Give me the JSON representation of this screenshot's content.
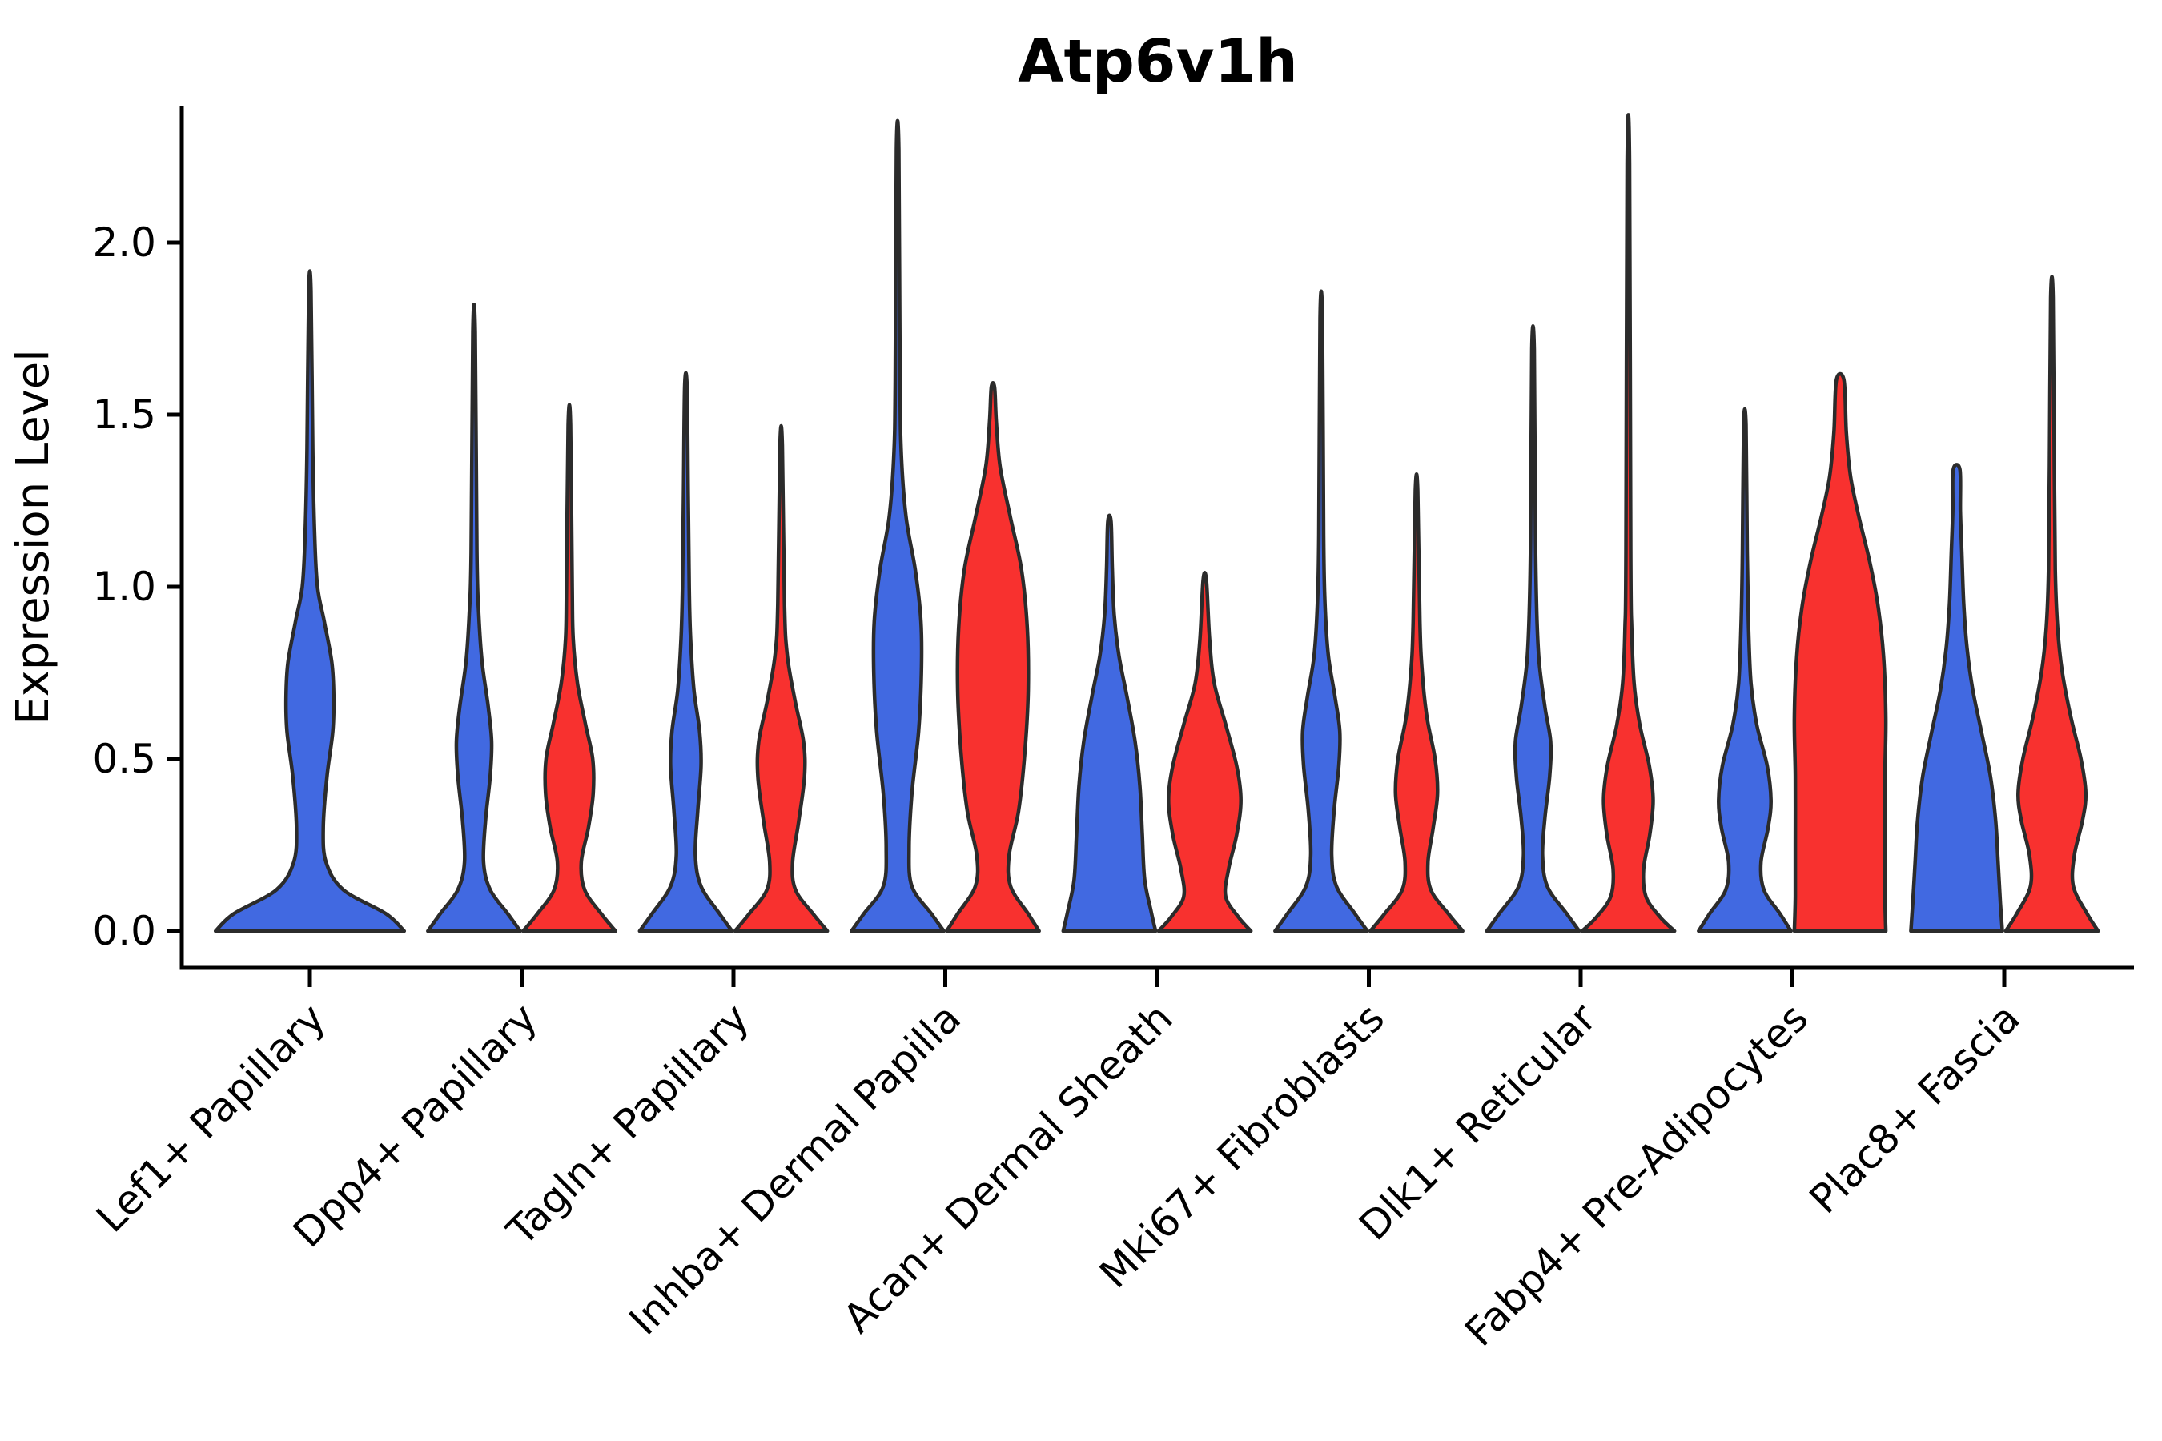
{
  "title": "Atp6v1h",
  "y_axis": {
    "label": "Expression Level",
    "tick_labels": [
      "0.0",
      "0.5",
      "1.0",
      "1.5",
      "2.0"
    ]
  },
  "x_axis": {
    "categories": [
      "Lef1+ Papillary",
      "Dpp4+ Papillary",
      "Tagln+ Papillary",
      "Inhba+ Dermal Papilla",
      "Acan+ Dermal Sheath",
      "Mki67+ Fibroblasts",
      "Dlk1+ Reticular",
      "Fabp4+ Pre-Adipocytes",
      "Plac8+ Fascia"
    ]
  },
  "colors": {
    "blue": "#4169E1",
    "red": "#F8312F",
    "outline": "#2B2B2B",
    "axis": "#000000",
    "background": "#FFFFFF"
  },
  "chart_data": {
    "type": "violin",
    "split_violin": true,
    "title": "Atp6v1h",
    "ylabel": "Expression Level",
    "ylim": [
      -0.11,
      2.4
    ],
    "yticks": [
      0.0,
      0.5,
      1.0,
      1.5,
      2.0
    ],
    "grid": false,
    "legend": "none",
    "categories": [
      "Lef1+ Papillary",
      "Dpp4+ Papillary",
      "Tagln+ Papillary",
      "Inhba+ Dermal Papilla",
      "Acan+ Dermal Sheath",
      "Mki67+ Fibroblasts",
      "Dlk1+ Reticular",
      "Fabp4+ Pre-Adipocytes",
      "Plac8+ Fascia"
    ],
    "violins": [
      {
        "category_index": 0,
        "group": "blue",
        "color": "#4169E1",
        "offset": 0.0,
        "width": 0.9,
        "max_expression": 1.86,
        "profile": [
          [
            0,
            0.99
          ],
          [
            0.05,
            0.8
          ],
          [
            0.12,
            0.35
          ],
          [
            0.2,
            0.17
          ],
          [
            0.3,
            0.14
          ],
          [
            0.45,
            0.18
          ],
          [
            0.58,
            0.24
          ],
          [
            0.68,
            0.25
          ],
          [
            0.78,
            0.23
          ],
          [
            0.9,
            0.15
          ],
          [
            1.0,
            0.08
          ],
          [
            1.15,
            0.05
          ],
          [
            1.4,
            0.03
          ],
          [
            1.86,
            0.012
          ]
        ]
      },
      {
        "category_index": 1,
        "group": "blue",
        "color": "#4169E1",
        "offset": -0.225,
        "width": 0.45,
        "max_expression": 1.74,
        "profile": [
          [
            0,
            0.97
          ],
          [
            0.05,
            0.71
          ],
          [
            0.12,
            0.34
          ],
          [
            0.2,
            0.2
          ],
          [
            0.32,
            0.24
          ],
          [
            0.45,
            0.34
          ],
          [
            0.55,
            0.37
          ],
          [
            0.65,
            0.3
          ],
          [
            0.78,
            0.17
          ],
          [
            0.92,
            0.1
          ],
          [
            1.1,
            0.06
          ],
          [
            1.74,
            0.025
          ]
        ]
      },
      {
        "category_index": 1,
        "group": "red",
        "color": "#F8312F",
        "offset": 0.225,
        "width": 0.45,
        "max_expression": 1.47,
        "profile": [
          [
            0,
            0.97
          ],
          [
            0.05,
            0.67
          ],
          [
            0.12,
            0.32
          ],
          [
            0.2,
            0.25
          ],
          [
            0.3,
            0.4
          ],
          [
            0.4,
            0.5
          ],
          [
            0.5,
            0.49
          ],
          [
            0.6,
            0.34
          ],
          [
            0.72,
            0.17
          ],
          [
            0.85,
            0.08
          ],
          [
            1.0,
            0.06
          ],
          [
            1.47,
            0.025
          ]
        ]
      },
      {
        "category_index": 2,
        "group": "blue",
        "color": "#4169E1",
        "offset": -0.225,
        "width": 0.45,
        "max_expression": 1.58,
        "profile": [
          [
            0,
            0.97
          ],
          [
            0.05,
            0.71
          ],
          [
            0.13,
            0.32
          ],
          [
            0.22,
            0.2
          ],
          [
            0.35,
            0.25
          ],
          [
            0.48,
            0.32
          ],
          [
            0.58,
            0.29
          ],
          [
            0.7,
            0.17
          ],
          [
            0.85,
            0.1
          ],
          [
            1.0,
            0.07
          ],
          [
            1.25,
            0.05
          ],
          [
            1.58,
            0.025
          ]
        ]
      },
      {
        "category_index": 2,
        "group": "red",
        "color": "#F8312F",
        "offset": 0.225,
        "width": 0.45,
        "max_expression": 1.41,
        "profile": [
          [
            0,
            0.97
          ],
          [
            0.05,
            0.67
          ],
          [
            0.12,
            0.3
          ],
          [
            0.2,
            0.24
          ],
          [
            0.32,
            0.37
          ],
          [
            0.45,
            0.49
          ],
          [
            0.55,
            0.47
          ],
          [
            0.67,
            0.29
          ],
          [
            0.8,
            0.13
          ],
          [
            0.95,
            0.07
          ],
          [
            1.41,
            0.025
          ]
        ]
      },
      {
        "category_index": 3,
        "group": "blue",
        "color": "#4169E1",
        "offset": -0.225,
        "width": 0.45,
        "max_expression": 2.27,
        "profile": [
          [
            0,
            0.97
          ],
          [
            0.05,
            0.71
          ],
          [
            0.13,
            0.3
          ],
          [
            0.24,
            0.24
          ],
          [
            0.4,
            0.3
          ],
          [
            0.58,
            0.44
          ],
          [
            0.75,
            0.5
          ],
          [
            0.9,
            0.49
          ],
          [
            1.05,
            0.37
          ],
          [
            1.2,
            0.18
          ],
          [
            1.38,
            0.08
          ],
          [
            1.6,
            0.05
          ],
          [
            2.27,
            0.025
          ]
        ]
      },
      {
        "category_index": 3,
        "group": "red",
        "color": "#F8312F",
        "offset": 0.225,
        "width": 0.45,
        "max_expression": 1.58,
        "profile": [
          [
            0,
            0.97
          ],
          [
            0.05,
            0.74
          ],
          [
            0.13,
            0.37
          ],
          [
            0.22,
            0.34
          ],
          [
            0.35,
            0.54
          ],
          [
            0.52,
            0.67
          ],
          [
            0.7,
            0.74
          ],
          [
            0.88,
            0.72
          ],
          [
            1.05,
            0.6
          ],
          [
            1.2,
            0.37
          ],
          [
            1.35,
            0.15
          ],
          [
            1.48,
            0.07
          ],
          [
            1.58,
            0.034
          ]
        ]
      },
      {
        "category_index": 4,
        "group": "blue",
        "color": "#4169E1",
        "offset": -0.225,
        "width": 0.45,
        "max_expression": 1.19,
        "profile": [
          [
            0,
            0.97
          ],
          [
            0.06,
            0.87
          ],
          [
            0.15,
            0.74
          ],
          [
            0.28,
            0.69
          ],
          [
            0.42,
            0.64
          ],
          [
            0.55,
            0.54
          ],
          [
            0.68,
            0.37
          ],
          [
            0.8,
            0.2
          ],
          [
            0.92,
            0.1
          ],
          [
            1.05,
            0.06
          ],
          [
            1.19,
            0.034
          ]
        ]
      },
      {
        "category_index": 4,
        "group": "red",
        "color": "#F8312F",
        "offset": 0.225,
        "width": 0.45,
        "max_expression": 1.02,
        "profile": [
          [
            0,
            0.97
          ],
          [
            0.04,
            0.71
          ],
          [
            0.1,
            0.44
          ],
          [
            0.18,
            0.5
          ],
          [
            0.28,
            0.67
          ],
          [
            0.38,
            0.76
          ],
          [
            0.48,
            0.67
          ],
          [
            0.6,
            0.44
          ],
          [
            0.72,
            0.2
          ],
          [
            0.85,
            0.1
          ],
          [
            1.02,
            0.034
          ]
        ]
      },
      {
        "category_index": 5,
        "group": "blue",
        "color": "#4169E1",
        "offset": -0.225,
        "width": 0.45,
        "max_expression": 1.78,
        "profile": [
          [
            0,
            0.97
          ],
          [
            0.05,
            0.71
          ],
          [
            0.13,
            0.32
          ],
          [
            0.22,
            0.22
          ],
          [
            0.35,
            0.27
          ],
          [
            0.48,
            0.37
          ],
          [
            0.58,
            0.39
          ],
          [
            0.68,
            0.29
          ],
          [
            0.8,
            0.15
          ],
          [
            0.95,
            0.08
          ],
          [
            1.15,
            0.05
          ],
          [
            1.78,
            0.025
          ]
        ]
      },
      {
        "category_index": 5,
        "group": "red",
        "color": "#F8312F",
        "offset": 0.225,
        "width": 0.45,
        "max_expression": 1.28,
        "profile": [
          [
            0,
            0.97
          ],
          [
            0.05,
            0.67
          ],
          [
            0.12,
            0.3
          ],
          [
            0.2,
            0.24
          ],
          [
            0.3,
            0.35
          ],
          [
            0.4,
            0.44
          ],
          [
            0.5,
            0.39
          ],
          [
            0.62,
            0.22
          ],
          [
            0.75,
            0.12
          ],
          [
            0.9,
            0.07
          ],
          [
            1.28,
            0.025
          ]
        ]
      },
      {
        "category_index": 6,
        "group": "blue",
        "color": "#4169E1",
        "offset": -0.225,
        "width": 0.45,
        "max_expression": 1.69,
        "profile": [
          [
            0,
            0.97
          ],
          [
            0.05,
            0.71
          ],
          [
            0.13,
            0.3
          ],
          [
            0.22,
            0.2
          ],
          [
            0.33,
            0.25
          ],
          [
            0.45,
            0.35
          ],
          [
            0.55,
            0.37
          ],
          [
            0.65,
            0.25
          ],
          [
            0.78,
            0.13
          ],
          [
            0.92,
            0.08
          ],
          [
            1.15,
            0.05
          ],
          [
            1.69,
            0.025
          ]
        ]
      },
      {
        "category_index": 6,
        "group": "red",
        "color": "#F8312F",
        "offset": 0.225,
        "width": 0.45,
        "max_expression": 2.23,
        "profile": [
          [
            0,
            0.97
          ],
          [
            0.04,
            0.67
          ],
          [
            0.1,
            0.37
          ],
          [
            0.18,
            0.32
          ],
          [
            0.28,
            0.45
          ],
          [
            0.38,
            0.52
          ],
          [
            0.48,
            0.44
          ],
          [
            0.6,
            0.24
          ],
          [
            0.72,
            0.12
          ],
          [
            0.88,
            0.07
          ],
          [
            1.1,
            0.05
          ],
          [
            2.23,
            0.025
          ]
        ]
      },
      {
        "category_index": 7,
        "group": "blue",
        "color": "#4169E1",
        "offset": -0.225,
        "width": 0.45,
        "max_expression": 1.47,
        "profile": [
          [
            0,
            0.97
          ],
          [
            0.05,
            0.74
          ],
          [
            0.12,
            0.4
          ],
          [
            0.2,
            0.34
          ],
          [
            0.3,
            0.49
          ],
          [
            0.38,
            0.55
          ],
          [
            0.48,
            0.47
          ],
          [
            0.6,
            0.25
          ],
          [
            0.72,
            0.13
          ],
          [
            0.88,
            0.08
          ],
          [
            1.1,
            0.05
          ],
          [
            1.47,
            0.025
          ]
        ]
      },
      {
        "category_index": 7,
        "group": "red",
        "color": "#F8312F",
        "offset": 0.225,
        "width": 0.45,
        "max_expression": 1.6,
        "profile": [
          [
            0,
            0.96
          ],
          [
            0.1,
            0.94
          ],
          [
            0.25,
            0.94
          ],
          [
            0.45,
            0.94
          ],
          [
            0.62,
            0.96
          ],
          [
            0.8,
            0.91
          ],
          [
            0.95,
            0.79
          ],
          [
            1.08,
            0.61
          ],
          [
            1.2,
            0.4
          ],
          [
            1.32,
            0.22
          ],
          [
            1.45,
            0.13
          ],
          [
            1.6,
            0.08
          ]
        ]
      },
      {
        "category_index": 8,
        "group": "blue",
        "color": "#4169E1",
        "offset": -0.225,
        "width": 0.45,
        "max_expression": 1.34,
        "profile": [
          [
            0,
            0.96
          ],
          [
            0.08,
            0.92
          ],
          [
            0.2,
            0.87
          ],
          [
            0.32,
            0.82
          ],
          [
            0.45,
            0.71
          ],
          [
            0.58,
            0.52
          ],
          [
            0.7,
            0.34
          ],
          [
            0.82,
            0.22
          ],
          [
            0.95,
            0.15
          ],
          [
            1.1,
            0.11
          ],
          [
            1.22,
            0.08
          ],
          [
            1.34,
            0.07
          ]
        ]
      },
      {
        "category_index": 8,
        "group": "red",
        "color": "#F8312F",
        "offset": 0.225,
        "width": 0.45,
        "max_expression": 1.84,
        "profile": [
          [
            0,
            0.97
          ],
          [
            0.05,
            0.74
          ],
          [
            0.13,
            0.45
          ],
          [
            0.22,
            0.47
          ],
          [
            0.32,
            0.64
          ],
          [
            0.4,
            0.71
          ],
          [
            0.5,
            0.61
          ],
          [
            0.62,
            0.4
          ],
          [
            0.75,
            0.22
          ],
          [
            0.88,
            0.12
          ],
          [
            1.05,
            0.07
          ],
          [
            1.35,
            0.05
          ],
          [
            1.84,
            0.025
          ]
        ]
      }
    ]
  }
}
